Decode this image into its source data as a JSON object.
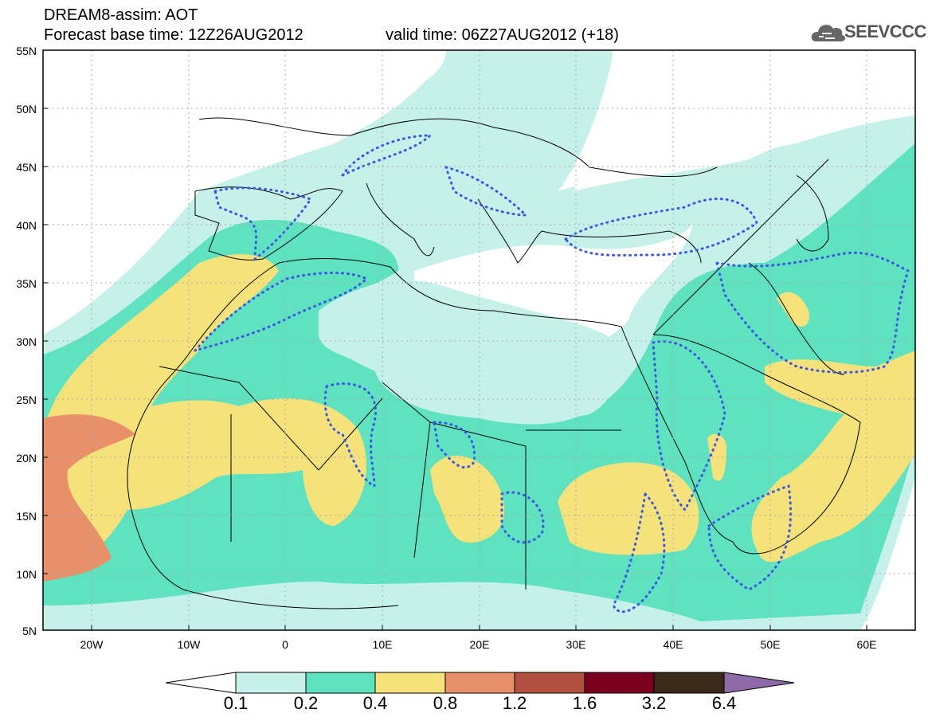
{
  "header": {
    "title": "DREAM8-assim: AOT",
    "base_time": "Forecast base time: 12Z26AUG2012",
    "valid_time": "valid time: 06Z27AUG2012 (+18)"
  },
  "logo": {
    "text": "SEEVCCC",
    "icon": "cloud-icon",
    "color": "#666666"
  },
  "map": {
    "lat_labels": [
      "55N",
      "50N",
      "45N",
      "40N",
      "35N",
      "30N",
      "25N",
      "20N",
      "15N",
      "10N",
      "5N"
    ],
    "lon_labels": [
      "20W",
      "10W",
      "0",
      "10E",
      "20E",
      "30E",
      "40E",
      "50E",
      "60E"
    ],
    "lon_range": [
      -25,
      65
    ],
    "lat_range": [
      5,
      55
    ]
  },
  "legend": {
    "labels": [
      "0.1",
      "0.2",
      "0.4",
      "0.8",
      "1.2",
      "1.6",
      "3.2",
      "6.4"
    ],
    "colors": [
      "#ffffff",
      "#c6f1ea",
      "#5fe2bf",
      "#f5e27a",
      "#e8906a",
      "#b25040",
      "#7a0020",
      "#3a2a18",
      "#8e6aa8"
    ]
  }
}
